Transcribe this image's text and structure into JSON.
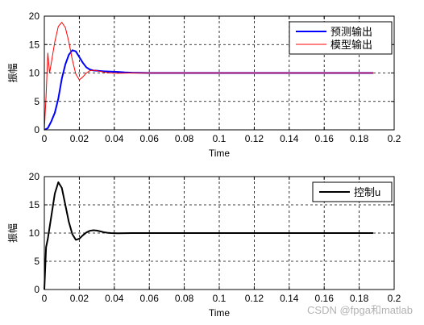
{
  "chart_data": [
    {
      "type": "line",
      "xlabel": "Time",
      "ylabel": "振幅",
      "xlim": [
        0,
        0.2
      ],
      "ylim": [
        0,
        20
      ],
      "xticks": [
        "0",
        "0.02",
        "0.04",
        "0.06",
        "0.08",
        "0.1",
        "0.12",
        "0.14",
        "0.16",
        "0.18",
        "0.2"
      ],
      "yticks": [
        "0",
        "5",
        "10",
        "15",
        "20"
      ],
      "grid": true,
      "legend_position": "top-right",
      "series": [
        {
          "name": "预测输出",
          "color": "#0000ff",
          "x": [
            0,
            0.002,
            0.004,
            0.006,
            0.008,
            0.01,
            0.012,
            0.014,
            0.016,
            0.018,
            0.02,
            0.022,
            0.024,
            0.026,
            0.028,
            0.03,
            0.034,
            0.038,
            0.042,
            0.046,
            0.05,
            0.06,
            0.08,
            0.1,
            0.12,
            0.14,
            0.16,
            0.188
          ],
          "y": [
            0,
            0.3,
            1.5,
            3.0,
            5.5,
            9.0,
            11.5,
            13.2,
            14.0,
            13.8,
            12.8,
            11.8,
            11.0,
            10.6,
            10.45,
            10.4,
            10.3,
            10.25,
            10.2,
            10.1,
            10.05,
            10.0,
            10.0,
            10.0,
            10.0,
            10.0,
            10.0,
            10.0
          ]
        },
        {
          "name": "模型输出",
          "color": "#ff0000",
          "x": [
            0,
            0.001,
            0.002,
            0.003,
            0.004,
            0.006,
            0.008,
            0.01,
            0.012,
            0.014,
            0.016,
            0.018,
            0.02,
            0.022,
            0.024,
            0.026,
            0.028,
            0.03,
            0.034,
            0.038,
            0.042,
            0.05,
            0.08,
            0.12,
            0.16,
            0.188
          ],
          "y": [
            0,
            6.0,
            13.5,
            10.0,
            11.8,
            15.5,
            18.2,
            18.9,
            18.0,
            15.5,
            12.3,
            9.8,
            8.8,
            9.3,
            10.0,
            10.4,
            10.5,
            10.4,
            10.15,
            10.0,
            9.95,
            10.0,
            10.0,
            10.0,
            10.0,
            10.0
          ]
        }
      ]
    },
    {
      "type": "line",
      "xlabel": "Time",
      "ylabel": "振幅",
      "xlim": [
        0,
        0.2
      ],
      "ylim": [
        0,
        20
      ],
      "xticks": [
        "0",
        "0.02",
        "0.04",
        "0.06",
        "0.08",
        "0.1",
        "0.12",
        "0.14",
        "0.16",
        "0.18",
        "0.2"
      ],
      "yticks": [
        "0",
        "5",
        "10",
        "15",
        "20"
      ],
      "grid": true,
      "legend_position": "top-right",
      "series": [
        {
          "name": "控制u",
          "color": "#000000",
          "x": [
            0,
            0.001,
            0.002,
            0.004,
            0.006,
            0.008,
            0.01,
            0.012,
            0.014,
            0.016,
            0.018,
            0.02,
            0.022,
            0.024,
            0.026,
            0.028,
            0.03,
            0.032,
            0.034,
            0.036,
            0.038,
            0.042,
            0.05,
            0.08,
            0.12,
            0.16,
            0.188
          ],
          "y": [
            0,
            7.5,
            9.0,
            13.0,
            17.0,
            19.0,
            18.0,
            15.0,
            12.0,
            9.8,
            8.8,
            9.0,
            9.6,
            10.1,
            10.4,
            10.5,
            10.45,
            10.3,
            10.15,
            10.05,
            10.0,
            9.97,
            10.0,
            10.0,
            10.0,
            10.0,
            10.0
          ]
        }
      ]
    }
  ],
  "watermark": "CSDN @fpga和matlab"
}
